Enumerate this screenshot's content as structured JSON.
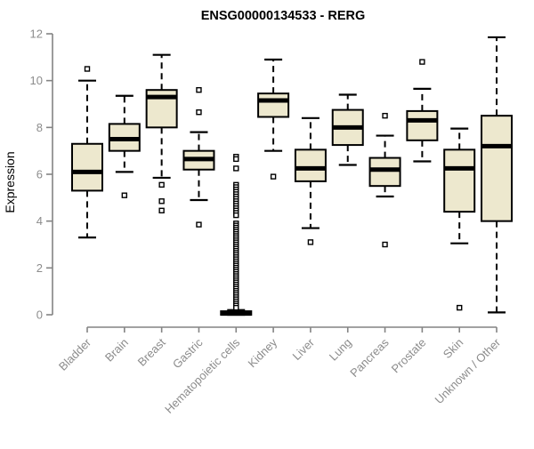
{
  "chart_data": {
    "type": "boxplot",
    "title": "ENSG00000134533 - RERG",
    "ylabel": "Expression",
    "xlabel": "",
    "ylim": [
      0,
      12
    ],
    "yticks": [
      0,
      2,
      4,
      6,
      8,
      10,
      12
    ],
    "grid": "off",
    "legend": "none",
    "colors": {
      "box_fill": "#EDE8CE",
      "box_stroke": "#000000",
      "axis_color": "#848484",
      "label_color": "#8C8C8C",
      "title_color": "#000000"
    },
    "categories": [
      "Bladder",
      "Brain",
      "Breast",
      "Gastric",
      "Hematopoietic cells",
      "Kidney",
      "Liver",
      "Lung",
      "Pancreas",
      "Prostate",
      "Skin",
      "Unknown / Other"
    ],
    "series": [
      {
        "name": "Bladder",
        "q1": 5.3,
        "median": 6.1,
        "q3": 7.3,
        "whisker_low": 3.3,
        "whisker_high": 10.0,
        "outliers": [
          10.5
        ]
      },
      {
        "name": "Brain",
        "q1": 7.0,
        "median": 7.5,
        "q3": 8.15,
        "whisker_low": 6.1,
        "whisker_high": 9.35,
        "outliers": [
          5.1
        ]
      },
      {
        "name": "Breast",
        "q1": 8.0,
        "median": 9.3,
        "q3": 9.6,
        "whisker_low": 5.85,
        "whisker_high": 11.1,
        "outliers": [
          5.55,
          4.85,
          4.45
        ]
      },
      {
        "name": "Gastric",
        "q1": 6.2,
        "median": 6.65,
        "q3": 7.0,
        "whisker_low": 4.9,
        "whisker_high": 7.8,
        "outliers": [
          9.6,
          8.65,
          3.85
        ]
      },
      {
        "name": "Hematopoietic cells",
        "q1": 0.0,
        "median": 0.05,
        "q3": 0.15,
        "whisker_low": 0.0,
        "whisker_high": 0.2,
        "outliers": [
          6.75,
          6.65,
          6.25,
          5.55,
          5.45,
          5.35,
          5.25,
          5.15,
          5.05,
          4.95,
          4.85,
          4.75,
          4.65,
          4.55,
          4.45,
          4.35,
          4.25,
          3.9,
          3.81,
          3.72,
          3.63,
          3.54,
          3.45,
          3.36,
          3.27,
          3.18,
          3.09,
          3.0,
          2.91,
          2.82,
          2.73,
          2.64,
          2.55,
          2.46,
          2.37,
          2.28,
          2.19,
          2.1,
          2.01,
          1.92,
          1.83,
          1.74,
          1.65,
          1.56,
          1.47,
          1.38,
          1.29,
          1.2,
          1.11,
          1.02,
          0.93,
          0.84,
          0.75,
          0.66,
          0.57,
          0.48,
          0.39,
          0.3
        ]
      },
      {
        "name": "Kidney",
        "q1": 8.45,
        "median": 9.15,
        "q3": 9.45,
        "whisker_low": 7.0,
        "whisker_high": 10.9,
        "outliers": [
          5.9
        ]
      },
      {
        "name": "Liver",
        "q1": 5.7,
        "median": 6.25,
        "q3": 7.05,
        "whisker_low": 3.7,
        "whisker_high": 8.4,
        "outliers": [
          3.1
        ]
      },
      {
        "name": "Lung",
        "q1": 7.25,
        "median": 8.0,
        "q3": 8.75,
        "whisker_low": 6.4,
        "whisker_high": 9.4,
        "outliers": []
      },
      {
        "name": "Pancreas",
        "q1": 5.5,
        "median": 6.2,
        "q3": 6.7,
        "whisker_low": 5.05,
        "whisker_high": 7.65,
        "outliers": [
          8.5,
          3.0
        ]
      },
      {
        "name": "Prostate",
        "q1": 7.45,
        "median": 8.3,
        "q3": 8.7,
        "whisker_low": 6.55,
        "whisker_high": 9.65,
        "outliers": [
          10.8
        ]
      },
      {
        "name": "Skin",
        "q1": 4.4,
        "median": 6.25,
        "q3": 7.05,
        "whisker_low": 3.05,
        "whisker_high": 7.95,
        "outliers": [
          0.3
        ]
      },
      {
        "name": "Unknown / Other",
        "q1": 4.0,
        "median": 7.2,
        "q3": 8.5,
        "whisker_low": 0.1,
        "whisker_high": 11.85,
        "outliers": []
      }
    ]
  }
}
